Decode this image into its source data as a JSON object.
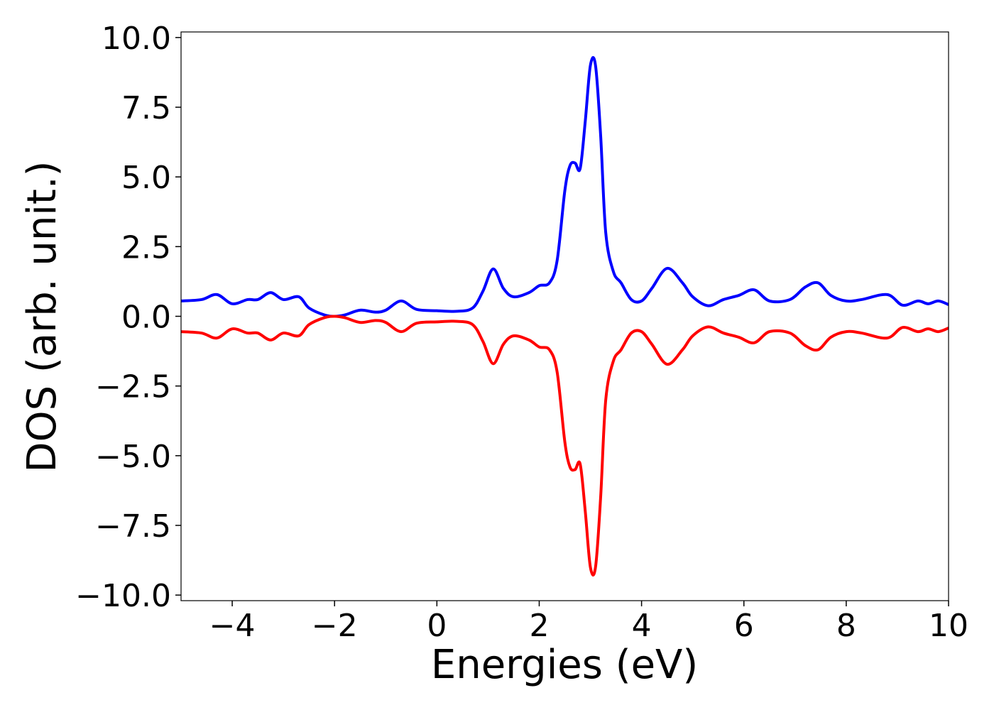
{
  "chart_data": {
    "type": "line",
    "xlabel": "Energies (eV)",
    "ylabel": "DOS (arb. unit.)",
    "xlim": [
      -5,
      10
    ],
    "ylim": [
      -10.2,
      10.2
    ],
    "xticks": [
      -4,
      -2,
      0,
      2,
      4,
      6,
      8,
      10
    ],
    "xtick_labels": [
      "−4",
      "−2",
      "0",
      "2",
      "4",
      "6",
      "8",
      "10"
    ],
    "yticks": [
      10,
      7.5,
      5,
      2.5,
      0,
      -2.5,
      -5,
      -7.5,
      -10
    ],
    "ytick_labels": [
      "10.0",
      "7.5",
      "5.0",
      "2.5",
      "0.0",
      "−2.5",
      "−5.0",
      "−7.5",
      "−10.0"
    ],
    "grid": false,
    "series": [
      {
        "color": "#0000ff",
        "x": [
          -5.0,
          -4.6,
          -4.3,
          -4.0,
          -3.7,
          -3.5,
          -3.25,
          -3.0,
          -2.7,
          -2.5,
          -2.2,
          -2.0,
          -1.8,
          -1.5,
          -1.2,
          -1.0,
          -0.7,
          -0.4,
          0.0,
          0.4,
          0.7,
          0.9,
          1.1,
          1.3,
          1.5,
          1.8,
          2.0,
          2.2,
          2.35,
          2.5,
          2.6,
          2.7,
          2.8,
          2.9,
          3.0,
          3.1,
          3.2,
          3.3,
          3.45,
          3.6,
          3.8,
          4.0,
          4.2,
          4.5,
          4.8,
          5.0,
          5.3,
          5.6,
          5.9,
          6.2,
          6.5,
          6.9,
          7.2,
          7.45,
          7.7,
          8.0,
          8.3,
          8.8,
          9.1,
          9.4,
          9.6,
          9.8,
          10.0
        ],
        "y": [
          0.55,
          0.6,
          0.78,
          0.45,
          0.6,
          0.6,
          0.85,
          0.6,
          0.7,
          0.3,
          0.05,
          0.0,
          0.05,
          0.22,
          0.15,
          0.22,
          0.55,
          0.25,
          0.2,
          0.18,
          0.3,
          0.9,
          1.7,
          1.0,
          0.7,
          0.85,
          1.1,
          1.2,
          2.0,
          4.5,
          5.4,
          5.5,
          5.3,
          7.0,
          9.0,
          9.0,
          6.5,
          3.0,
          1.6,
          1.2,
          0.6,
          0.55,
          1.0,
          1.72,
          1.2,
          0.7,
          0.38,
          0.6,
          0.75,
          0.95,
          0.55,
          0.6,
          1.05,
          1.2,
          0.75,
          0.55,
          0.6,
          0.78,
          0.4,
          0.55,
          0.45,
          0.55,
          0.42
        ]
      },
      {
        "color": "#ff0000",
        "x": [
          -5.0,
          -4.6,
          -4.3,
          -4.0,
          -3.7,
          -3.5,
          -3.25,
          -3.0,
          -2.7,
          -2.5,
          -2.2,
          -2.0,
          -1.8,
          -1.5,
          -1.2,
          -1.0,
          -0.7,
          -0.4,
          0.0,
          0.4,
          0.7,
          0.9,
          1.1,
          1.3,
          1.5,
          1.8,
          2.0,
          2.2,
          2.35,
          2.5,
          2.6,
          2.7,
          2.8,
          2.9,
          3.0,
          3.1,
          3.2,
          3.3,
          3.45,
          3.6,
          3.8,
          4.0,
          4.2,
          4.5,
          4.8,
          5.0,
          5.3,
          5.6,
          5.9,
          6.2,
          6.5,
          6.9,
          7.2,
          7.45,
          7.7,
          8.0,
          8.3,
          8.8,
          9.1,
          9.4,
          9.6,
          9.8,
          10.0
        ],
        "y": [
          -0.55,
          -0.6,
          -0.78,
          -0.45,
          -0.6,
          -0.6,
          -0.85,
          -0.6,
          -0.7,
          -0.3,
          -0.05,
          0.0,
          -0.05,
          -0.22,
          -0.15,
          -0.22,
          -0.55,
          -0.25,
          -0.2,
          -0.18,
          -0.3,
          -0.9,
          -1.7,
          -1.0,
          -0.7,
          -0.85,
          -1.1,
          -1.2,
          -2.0,
          -4.5,
          -5.4,
          -5.5,
          -5.3,
          -7.0,
          -9.0,
          -9.0,
          -6.5,
          -3.0,
          -1.6,
          -1.2,
          -0.6,
          -0.55,
          -1.0,
          -1.72,
          -1.2,
          -0.7,
          -0.38,
          -0.6,
          -0.75,
          -0.95,
          -0.55,
          -0.6,
          -1.05,
          -1.2,
          -0.75,
          -0.55,
          -0.6,
          -0.78,
          -0.4,
          -0.55,
          -0.45,
          -0.55,
          -0.42
        ]
      }
    ]
  }
}
